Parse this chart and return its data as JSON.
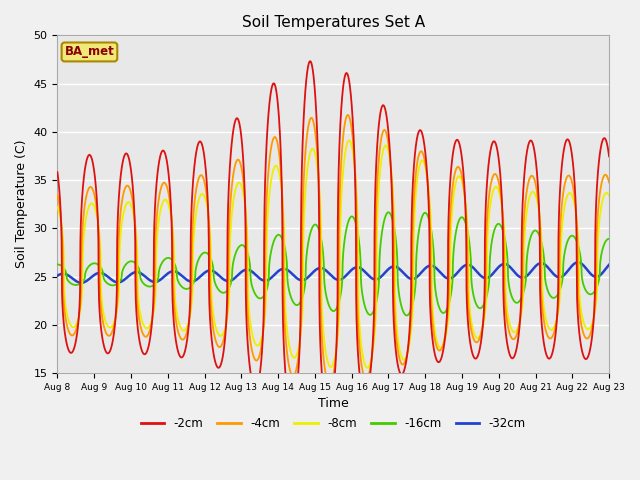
{
  "title": "Soil Temperatures Set A",
  "xlabel": "Time",
  "ylabel": "Soil Temperature (C)",
  "ylim": [
    15,
    50
  ],
  "yticks": [
    15,
    20,
    25,
    30,
    35,
    40,
    45,
    50
  ],
  "x_tick_labels": [
    "Aug 8",
    "Aug 9",
    "Aug 10",
    "Aug 11",
    "Aug 12",
    "Aug 13",
    "Aug 14",
    "Aug 15",
    "Aug 16",
    "Aug 17",
    "Aug 18",
    "Aug 19",
    "Aug 20",
    "Aug 21",
    "Aug 22",
    "Aug 23"
  ],
  "colors": {
    "-2cm": "#dd1111",
    "-4cm": "#ff9900",
    "-8cm": "#eeee00",
    "-16cm": "#44cc00",
    "-32cm": "#2244cc"
  },
  "legend_label": "BA_met",
  "bg_color": "#e8e8e8",
  "grid_color": "#ffffff",
  "fig_color": "#f0f0f0"
}
